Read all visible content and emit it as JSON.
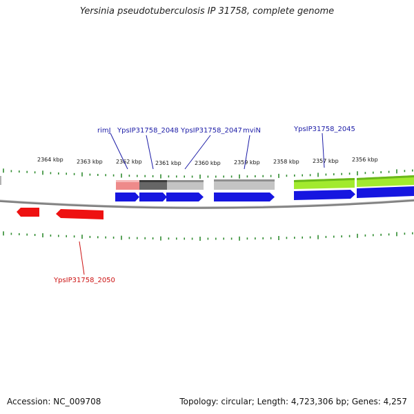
{
  "title": "Yersinia pseudotuberculosis IP 31758, complete genome",
  "footer": {
    "accession": "Accession: NC_009708",
    "topology": "Topology: circular; Length: 4,723,306 bp; Genes: 4,257"
  },
  "colors": {
    "tick": "#2e8b2e",
    "label_blue": "#1a1aa6",
    "label_red": "#cc1111",
    "backbone": "#808080",
    "cds_blue": "#1616e0",
    "cds_red": "#ee1111",
    "feature_pink": "#ee8a8a",
    "feature_darkgray": "#666666",
    "feature_lightgray": "#c4c4c4",
    "feature_green": "#a2ea2e"
  },
  "kbp_labels": [
    "2364 kbp",
    "2363 kbp",
    "2362 kbp",
    "2361 kbp",
    "2360 kbp",
    "2359 kbp",
    "2358 kbp",
    "2357 kbp",
    "2356 kbp"
  ],
  "gene_labels": {
    "rimJ": "rimJ",
    "ypsip_2048": "YpsIP31758_2048",
    "ypsip_2047": "YpsIP31758_2047",
    "mviN": "mviN",
    "ypsip_2045": "YpsIP31758_2045",
    "ypsip_2050": "YpsIP31758_2050"
  }
}
